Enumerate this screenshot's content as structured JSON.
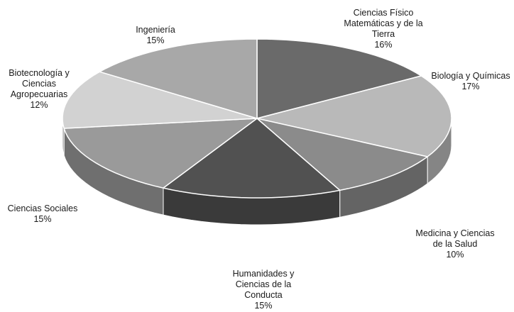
{
  "chart_data": {
    "type": "pie",
    "style": "3d",
    "title": "",
    "slices": [
      {
        "label": "Ciencias Físico Matemáticas y de la Tierra",
        "label_lines": [
          "Ciencias Físico",
          "Matemáticas y de la",
          "Tierra"
        ],
        "value": 16,
        "display": "16%",
        "color": "#6a6a6a"
      },
      {
        "label": "Biología y Químicas",
        "label_lines": [
          "Biología y Químicas"
        ],
        "value": 17,
        "display": "17%",
        "color": "#b9b9b9"
      },
      {
        "label": "Medicina y Ciencias de la Salud",
        "label_lines": [
          "Medicina y Ciencias",
          "de la Salud"
        ],
        "value": 10,
        "display": "10%",
        "color": "#8b8b8b"
      },
      {
        "label": "Humanidades y Ciencias de la Conducta",
        "label_lines": [
          "Humanidades y",
          "Ciencias de la",
          "Conducta"
        ],
        "value": 15,
        "display": "15%",
        "color": "#515151"
      },
      {
        "label": "Ciencias Sociales",
        "label_lines": [
          "Ciencias Sociales"
        ],
        "value": 15,
        "display": "15%",
        "color": "#9a9a9a"
      },
      {
        "label": "Biotecnología y Ciencias Agropecuarias",
        "label_lines": [
          "Biotecnología y",
          "Ciencias",
          "Agropecuarias"
        ],
        "value": 12,
        "display": "12%",
        "color": "#d2d2d2"
      },
      {
        "label": "Ingeniería",
        "label_lines": [
          "Ingeniería"
        ],
        "value": 15,
        "display": "15%",
        "color": "#a8a8a8"
      }
    ]
  }
}
